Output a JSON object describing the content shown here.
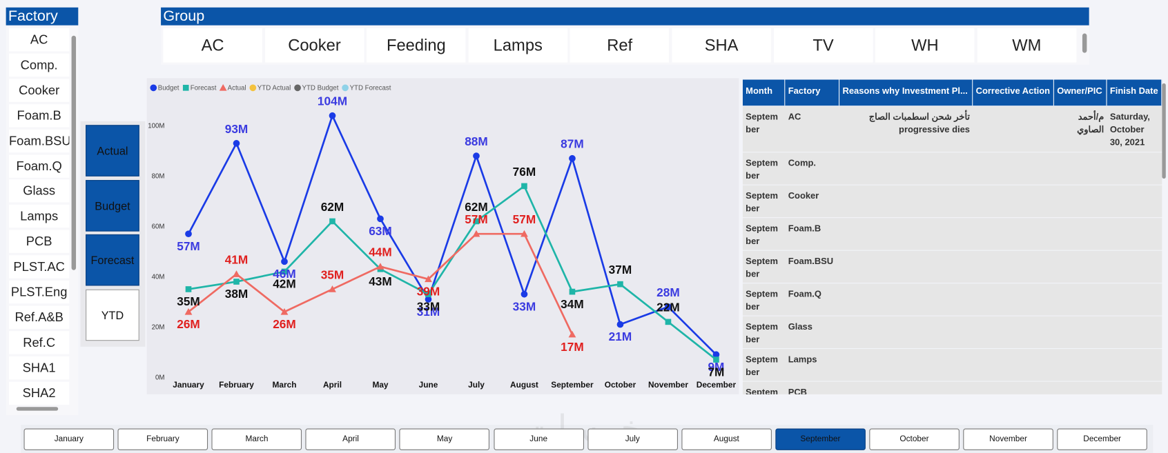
{
  "factory_slicer": {
    "title": "Factory",
    "items": [
      "AC",
      "Comp.",
      "Cooker",
      "Foam.B",
      "Foam.BSU",
      "Foam.Q",
      "Glass",
      "Lamps",
      "PCB",
      "PLST.AC",
      "PLST.Eng",
      "Ref.A&B",
      "Ref.C",
      "SHA1",
      "SHA2"
    ]
  },
  "group_slicer": {
    "title": "Group",
    "items": [
      "AC",
      "Cooker",
      "Feeding",
      "Lamps",
      "Ref",
      "SHA",
      "TV",
      "WH",
      "WM"
    ]
  },
  "measure_buttons": {
    "items": [
      "Actual",
      "Budget",
      "Forecast",
      "YTD"
    ],
    "selected": [
      "Actual",
      "Budget",
      "Forecast"
    ]
  },
  "chart_data": {
    "type": "line",
    "categories": [
      "January",
      "February",
      "March",
      "April",
      "May",
      "June",
      "July",
      "August",
      "September",
      "October",
      "November",
      "December"
    ],
    "series": [
      {
        "name": "Budget",
        "color": "#1a3be6",
        "marker": "circle",
        "label_color": "#3b3be0",
        "values": [
          57,
          93,
          46,
          104,
          63,
          31,
          88,
          33,
          87,
          21,
          28,
          9
        ],
        "value_labels": [
          "57M",
          "93M",
          "46M",
          "104M",
          "63M",
          "31M",
          "88M",
          "33M",
          "87M",
          "21M",
          "28M",
          "9M"
        ]
      },
      {
        "name": "Forecast",
        "color": "#1fb5a8",
        "marker": "square",
        "label_color": "#111111",
        "values": [
          35,
          38,
          42,
          62,
          43,
          33,
          62,
          76,
          34,
          37,
          22,
          7
        ],
        "value_labels": [
          "35M",
          "38M",
          "42M",
          "62M",
          "43M",
          "33M",
          "62M",
          "76M",
          "34M",
          "37M",
          "22M",
          "7M"
        ]
      },
      {
        "name": "Actual",
        "color": "#ef6a62",
        "marker": "triangle",
        "label_color": "#e0201f",
        "values": [
          26,
          41,
          26,
          35,
          44,
          39,
          57,
          57,
          17,
          null,
          null,
          null
        ],
        "value_labels": [
          "26M",
          "41M",
          "26M",
          "35M",
          "44M",
          "39M",
          "57M",
          "57M",
          "17M",
          null,
          null,
          null
        ]
      },
      {
        "name": "YTD Actual",
        "color": "#f4c23e",
        "marker": "circle",
        "values": [
          null,
          null,
          null,
          null,
          null,
          null,
          null,
          null,
          null,
          null,
          null,
          null
        ]
      },
      {
        "name": "YTD Budget",
        "color": "#666666",
        "marker": "circle",
        "values": [
          null,
          null,
          null,
          null,
          null,
          null,
          null,
          null,
          null,
          null,
          null,
          null
        ]
      },
      {
        "name": "YTD Forecast",
        "color": "#8fd2e8",
        "marker": "circle",
        "values": [
          null,
          null,
          null,
          null,
          null,
          null,
          null,
          null,
          null,
          null,
          null,
          null
        ]
      }
    ],
    "ylim": [
      0,
      105
    ],
    "yticks": [
      {
        "value": 0,
        "label": "0M"
      },
      {
        "value": 20,
        "label": "20M"
      },
      {
        "value": 40,
        "label": "40M"
      },
      {
        "value": 60,
        "label": "60M"
      },
      {
        "value": 80,
        "label": "80M"
      },
      {
        "value": 100,
        "label": "100M"
      }
    ],
    "grid": false,
    "legend": "top-left"
  },
  "table": {
    "columns": [
      "Month",
      "Factory",
      "Reasons why Investment Pl...",
      "Corrective Action",
      "Owner/PIC",
      "Finish Date"
    ],
    "rows": [
      [
        "September",
        "AC",
        "تأخر  شحن اسطمبات الصاج progressive dies",
        null,
        "م/أحمد الصاوي",
        "Saturday, October 30, 2021"
      ],
      [
        "September",
        "Comp.",
        null,
        null,
        null,
        null
      ],
      [
        "September",
        "Cooker",
        null,
        null,
        null,
        null
      ],
      [
        "September",
        "Foam.B",
        null,
        null,
        null,
        null
      ],
      [
        "September",
        "Foam.BSU",
        null,
        null,
        null,
        null
      ],
      [
        "September",
        "Foam.Q",
        null,
        null,
        null,
        null
      ],
      [
        "September",
        "Glass",
        null,
        null,
        null,
        null
      ],
      [
        "September",
        "Lamps",
        null,
        null,
        null,
        null
      ],
      [
        "September",
        "PCB",
        null,
        null,
        null,
        null
      ]
    ]
  },
  "month_slicer": {
    "items": [
      "January",
      "February",
      "March",
      "April",
      "May",
      "June",
      "July",
      "August",
      "September",
      "October",
      "November",
      "December"
    ],
    "selected": "September"
  },
  "watermark": "خمسات"
}
